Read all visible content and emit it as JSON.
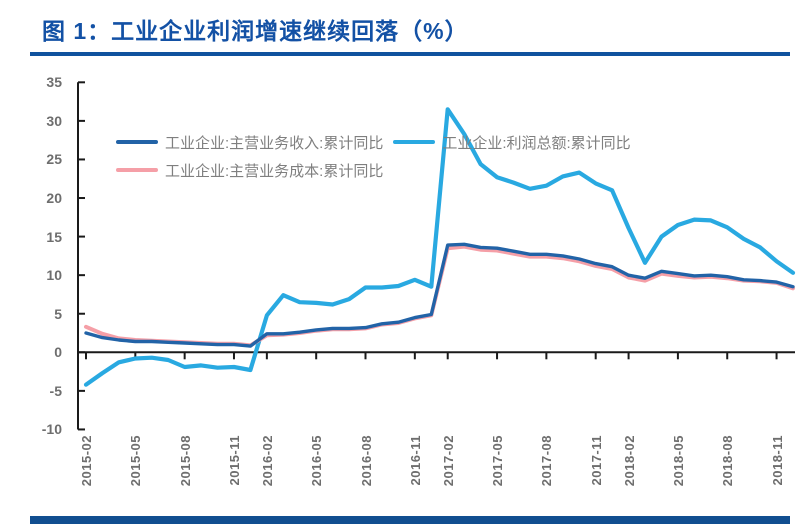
{
  "page": {
    "title": "图 1：工业企业利润增速继续回落（%）",
    "accent_color": "#10529E"
  },
  "chart_data": {
    "type": "line",
    "title": "工业企业利润增速继续回落",
    "unit": "%",
    "grid": false,
    "legend_position": "top",
    "ylim": [
      -10,
      35
    ],
    "y_ticks": [
      35,
      30,
      25,
      20,
      15,
      10,
      5,
      0,
      -5,
      -10
    ],
    "categories": [
      "2015-02",
      "2015-03",
      "2015-04",
      "2015-05",
      "2015-06",
      "2015-07",
      "2015-08",
      "2015-09",
      "2015-10",
      "2015-11",
      "2015-12",
      "2016-02",
      "2016-03",
      "2016-04",
      "2016-05",
      "2016-06",
      "2016-07",
      "2016-08",
      "2016-09",
      "2016-10",
      "2016-11",
      "2016-12",
      "2017-02",
      "2017-03",
      "2017-04",
      "2017-05",
      "2017-06",
      "2017-07",
      "2017-08",
      "2017-09",
      "2017-10",
      "2017-11",
      "2017-12",
      "2018-02",
      "2018-03",
      "2018-04",
      "2018-05",
      "2018-06",
      "2018-07",
      "2018-08",
      "2018-09",
      "2018-10",
      "2018-11",
      "2018-12"
    ],
    "x_tick_indices": [
      0,
      3,
      6,
      9,
      11,
      14,
      17,
      20,
      22,
      25,
      28,
      31,
      33,
      36,
      39,
      42
    ],
    "x_tick_labels": [
      "2015-02",
      "2015-05",
      "2015-08",
      "2015-11",
      "2016-02",
      "2016-05",
      "2016-08",
      "2016-11",
      "2017-02",
      "2017-05",
      "2017-08",
      "2017-11",
      "2018-02",
      "2018-05",
      "2018-08",
      "2018-11"
    ],
    "series": [
      {
        "name": "工业企业:主营业务收入:累计同比",
        "color": "#2263A7",
        "width": 3.4,
        "values": [
          2.5,
          1.9,
          1.6,
          1.4,
          1.4,
          1.3,
          1.2,
          1.1,
          1.0,
          1.0,
          0.8,
          2.4,
          2.4,
          2.6,
          2.9,
          3.1,
          3.1,
          3.2,
          3.7,
          3.9,
          4.5,
          4.9,
          13.9,
          14.0,
          13.6,
          13.5,
          13.1,
          12.7,
          12.7,
          12.5,
          12.1,
          11.5,
          11.1,
          10.0,
          9.6,
          10.5,
          10.2,
          9.9,
          10.0,
          9.8,
          9.4,
          9.3,
          9.1,
          8.5
        ]
      },
      {
        "name": "工业企业:利润总额:累计同比",
        "color": "#29A9E1",
        "width": 4.2,
        "values": [
          -4.2,
          -2.7,
          -1.3,
          -0.8,
          -0.7,
          -1.0,
          -1.9,
          -1.7,
          -2.0,
          -1.9,
          -2.3,
          4.8,
          7.4,
          6.5,
          6.4,
          6.2,
          6.9,
          8.4,
          8.4,
          8.6,
          9.4,
          8.5,
          31.5,
          28.3,
          24.4,
          22.7,
          22.0,
          21.2,
          21.6,
          22.8,
          23.3,
          21.9,
          21.0,
          16.1,
          11.6,
          15.0,
          16.5,
          17.2,
          17.1,
          16.2,
          14.7,
          13.6,
          11.8,
          10.3
        ]
      },
      {
        "name": "工业企业:主营业务成本:累计同比",
        "color": "#F59FA7",
        "width": 4.0,
        "values": [
          3.3,
          2.4,
          1.8,
          1.6,
          1.5,
          1.4,
          1.3,
          1.2,
          1.1,
          1.1,
          0.9,
          2.2,
          2.3,
          2.5,
          2.8,
          3.0,
          3.0,
          3.1,
          3.6,
          3.8,
          4.4,
          4.8,
          13.5,
          13.7,
          13.3,
          13.2,
          12.8,
          12.4,
          12.4,
          12.2,
          11.8,
          11.2,
          10.8,
          9.7,
          9.3,
          10.2,
          9.9,
          9.7,
          9.8,
          9.6,
          9.3,
          9.2,
          9.0,
          8.3
        ]
      }
    ],
    "axis_color": "#1A1A1A",
    "label_color": "#6E6E6E"
  }
}
